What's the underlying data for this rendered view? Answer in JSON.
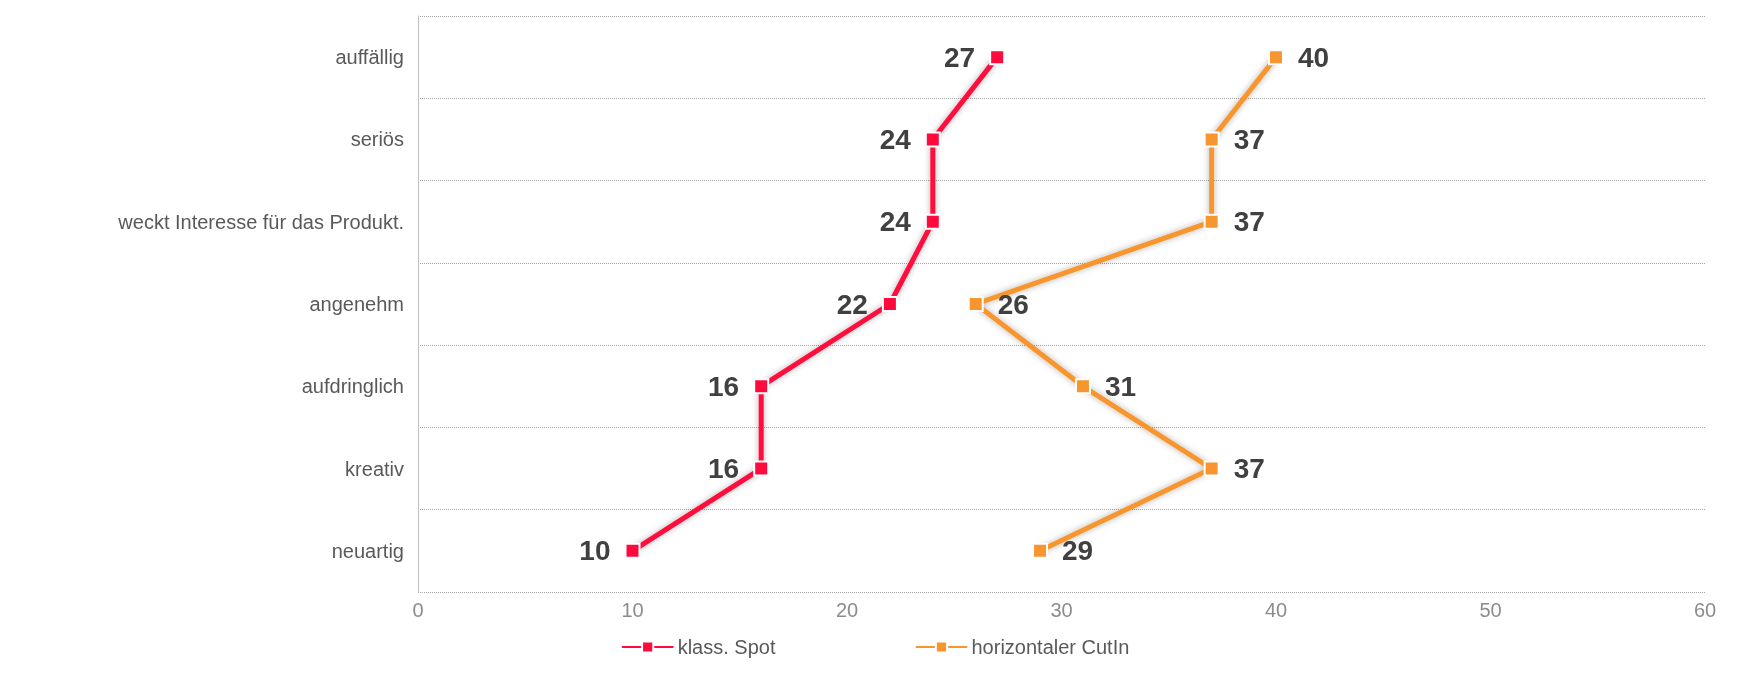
{
  "chart_data": {
    "type": "line",
    "orientation": "horizontal",
    "categories": [
      "auffällig",
      "seriös",
      "weckt Interesse für das Produkt.",
      "angenehm",
      "aufdringlich",
      "kreativ",
      "neuartig"
    ],
    "series": [
      {
        "name": "klass. Spot",
        "color": "#ff0a3c",
        "values": [
          27,
          24,
          24,
          22,
          16,
          16,
          10
        ]
      },
      {
        "name": "horizontaler CutIn",
        "color": "#f7962f",
        "values": [
          40,
          37,
          37,
          26,
          31,
          37,
          29
        ]
      }
    ],
    "xlim": [
      0,
      60
    ],
    "xticks": [
      0,
      10,
      20,
      30,
      40,
      50,
      60
    ],
    "grid": "y",
    "legend": "bottom",
    "marker": "square",
    "line_style": "solid",
    "data_labels": true
  }
}
